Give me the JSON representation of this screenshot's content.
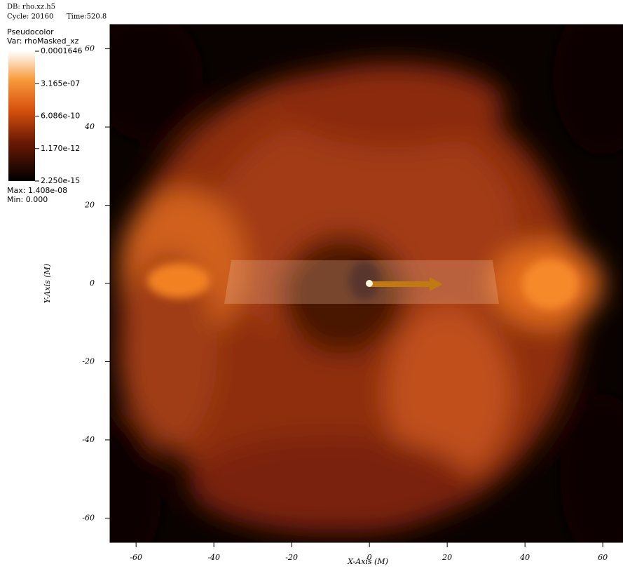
{
  "chart_data": {
    "type": "pseudocolor",
    "info": [
      "DB: rho.xz.h5",
      "Cycle: 20160",
      "Time:520.8"
    ],
    "legend": {
      "title": "Pseudocolor",
      "variable": "Var: rhoMasked_xz",
      "labels": [
        "0.0001646",
        "3.165e-07",
        "6.086e-10",
        "1.170e-12",
        "2.250e-15"
      ],
      "max": "Max: 1.408e-08",
      "min": "Min: 0.000"
    },
    "xlabel": "X-Axis (M)",
    "ylabel": "Y-Axis (M)",
    "xlim": [
      -66.7,
      65.2
    ],
    "ylim": [
      -66.2,
      66.2
    ],
    "xticks": [
      -60,
      -40,
      -20,
      0,
      20,
      40,
      60
    ],
    "yticks": [
      -60,
      -40,
      -20,
      0,
      20,
      40,
      60
    ]
  }
}
